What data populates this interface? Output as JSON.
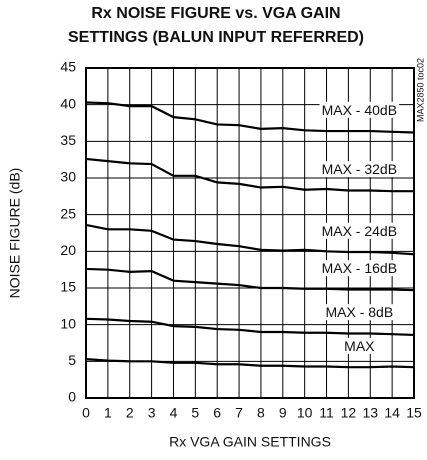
{
  "chart_data": {
    "type": "line",
    "title": [
      "Rx NOISE FIGURE vs. VGA GAIN",
      "SETTINGS (BALUN INPUT REFERRED)"
    ],
    "x_label": "Rx VGA GAIN SETTINGS",
    "y_label": "NOISE FIGURE (dB)",
    "annotation": "MAX2850 toc02",
    "x": [
      0,
      1,
      2,
      3,
      4,
      5,
      6,
      7,
      8,
      9,
      10,
      11,
      12,
      13,
      14,
      15
    ],
    "series": [
      {
        "name": "MAX - 40dB",
        "color": "#000000",
        "values": [
          40.3,
          40.2,
          39.8,
          39.8,
          38.3,
          38.0,
          37.3,
          37.2,
          36.7,
          36.8,
          36.5,
          36.4,
          36.4,
          36.4,
          36.3,
          36.2
        ]
      },
      {
        "name": "MAX - 32dB",
        "color": "#000000",
        "values": [
          32.6,
          32.3,
          32.0,
          31.9,
          30.3,
          30.3,
          29.4,
          29.2,
          28.7,
          28.8,
          28.4,
          28.5,
          28.3,
          28.3,
          28.2,
          28.2
        ]
      },
      {
        "name": "MAX - 24dB",
        "color": "#000000",
        "values": [
          23.6,
          23.0,
          23.0,
          22.8,
          21.6,
          21.4,
          21.0,
          20.7,
          20.2,
          20.1,
          20.2,
          20.0,
          19.9,
          19.9,
          19.8,
          19.6
        ]
      },
      {
        "name": "MAX - 16dB",
        "color": "#000000",
        "values": [
          17.6,
          17.5,
          17.2,
          17.3,
          16.0,
          15.8,
          15.6,
          15.4,
          15.0,
          15.0,
          14.9,
          14.9,
          14.8,
          14.8,
          14.8,
          14.7
        ]
      },
      {
        "name": "MAX - 8dB",
        "color": "#000000",
        "values": [
          10.8,
          10.7,
          10.5,
          10.4,
          9.8,
          9.7,
          9.4,
          9.3,
          9.0,
          9.0,
          8.9,
          8.9,
          8.8,
          8.8,
          8.7,
          8.6
        ]
      },
      {
        "name": "MAX",
        "color": "#000000",
        "values": [
          5.3,
          5.1,
          5.0,
          5.0,
          4.8,
          4.8,
          4.6,
          4.6,
          4.4,
          4.4,
          4.3,
          4.3,
          4.2,
          4.2,
          4.3,
          4.2
        ]
      }
    ],
    "xlim": [
      0,
      15
    ],
    "xticks": [
      0,
      1,
      2,
      3,
      4,
      5,
      6,
      7,
      8,
      9,
      10,
      11,
      12,
      13,
      14,
      15
    ],
    "ylim": [
      0,
      45
    ],
    "yticks": [
      0,
      5,
      10,
      15,
      20,
      25,
      30,
      35,
      40,
      45
    ],
    "grid": true
  }
}
